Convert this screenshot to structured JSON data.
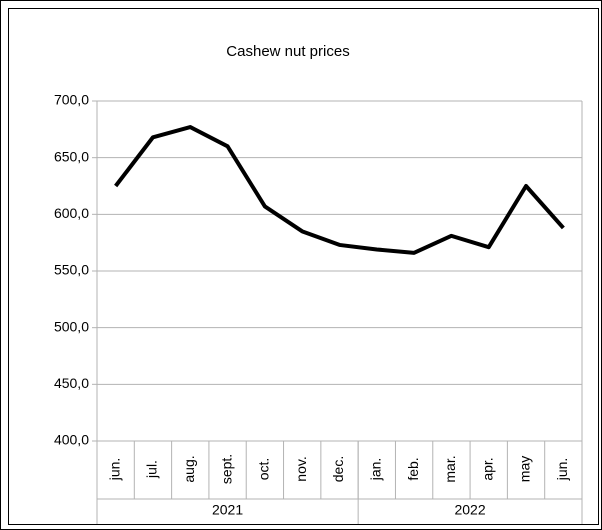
{
  "chart_data": {
    "type": "line",
    "title": "Cashew  nut prices",
    "categories": [
      "jun.",
      "jul.",
      "aug.",
      "sept.",
      "oct.",
      "nov.",
      "dec.",
      "jan.",
      "feb.",
      "mar.",
      "apr.",
      "may",
      "jun."
    ],
    "years": [
      "2021",
      null,
      null,
      null,
      null,
      null,
      null,
      "2022",
      null,
      null,
      null,
      null,
      null
    ],
    "series": [
      {
        "color": "#000000",
        "values": [
          625,
          668,
          677,
          660,
          607,
          585,
          573,
          569,
          566,
          581,
          571,
          625,
          588
        ]
      }
    ],
    "ylim": [
      400,
      700
    ],
    "yticks": [
      {
        "value": 400,
        "label": "400,0"
      },
      {
        "value": 450,
        "label": "450,0"
      },
      {
        "value": 500,
        "label": "500,0"
      },
      {
        "value": 550,
        "label": "550,0"
      },
      {
        "value": 600,
        "label": "600,0"
      },
      {
        "value": 650,
        "label": "650,0"
      },
      {
        "value": 700,
        "label": "700,0"
      }
    ],
    "grid": true
  }
}
